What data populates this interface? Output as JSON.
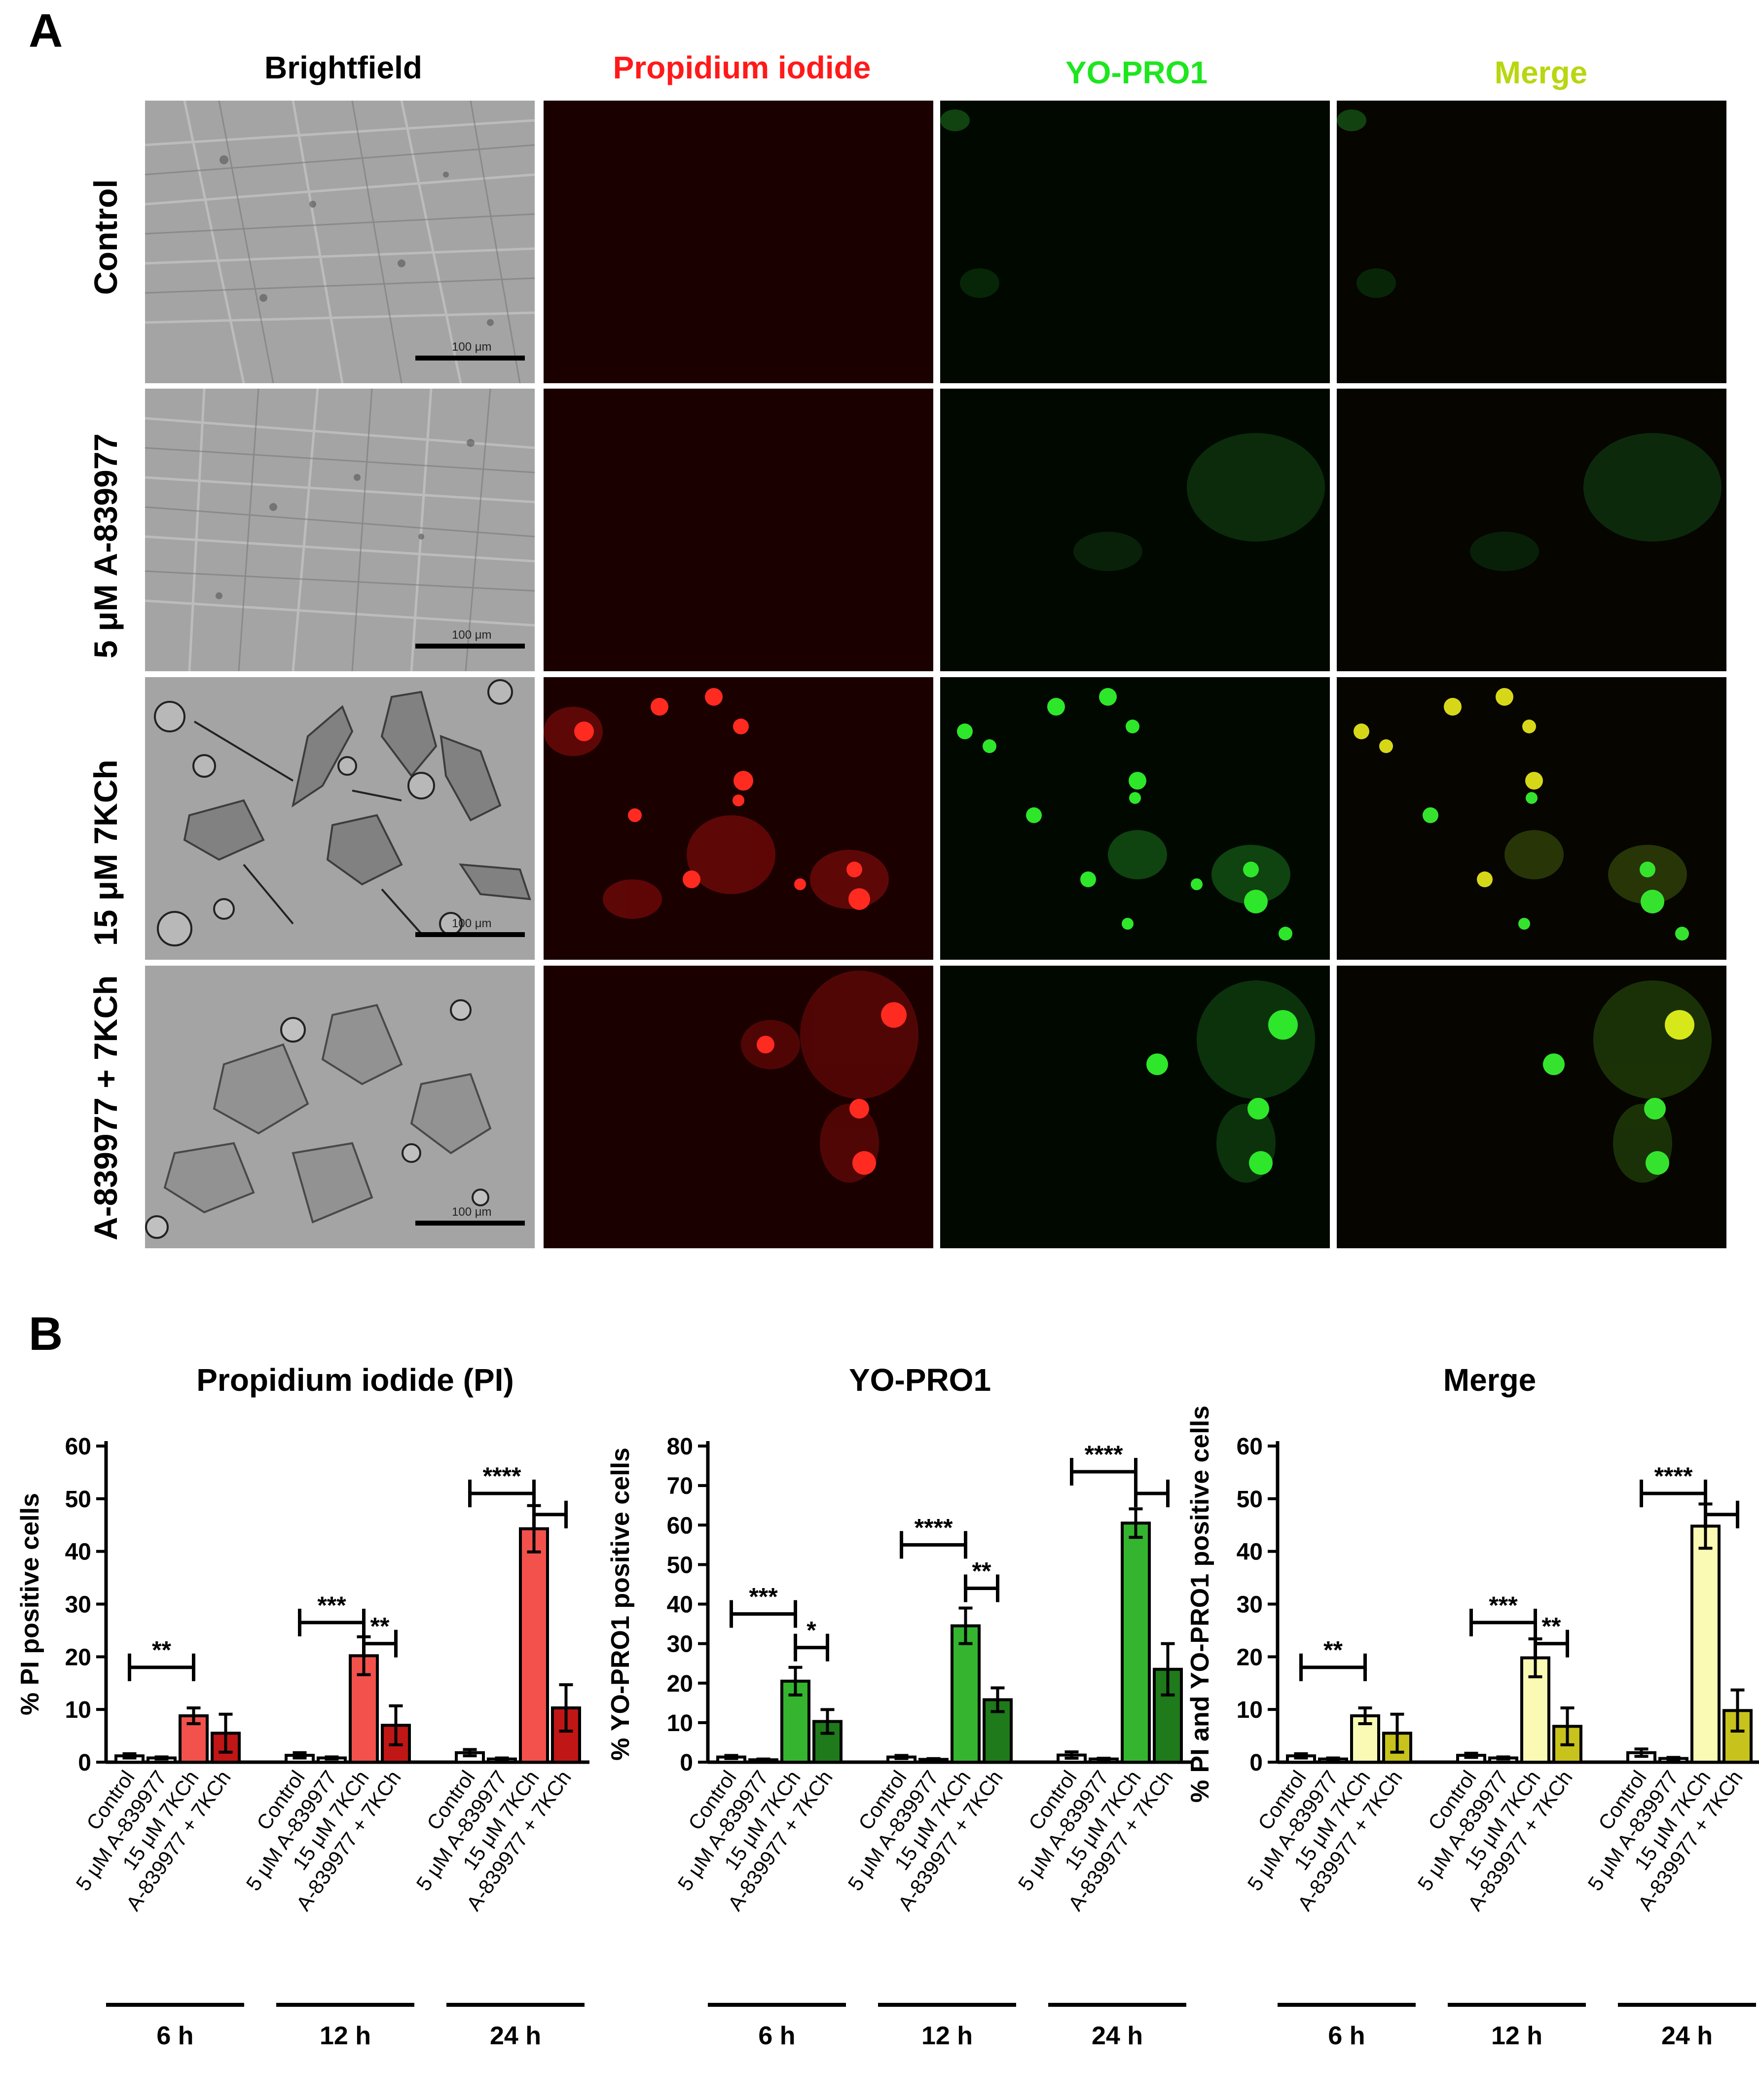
{
  "panel_a": {
    "letter": "A",
    "columns": [
      "Brightfield",
      "Propidium iodide",
      "YO-PRO1",
      "Merge"
    ],
    "column_colors": [
      "#000000",
      "#ff1a1a",
      "#1ee61e",
      "#b9d60f"
    ],
    "rows": [
      "Control",
      "5 μM A-839977",
      "15 μM 7KCh",
      "A-839977 + 7KCh"
    ],
    "scale_bar_label": "100 μm"
  },
  "panel_b": {
    "letter": "B"
  },
  "chart_data": [
    {
      "type": "bar",
      "title": "Propidium iodide (PI)",
      "ylabel": "% PI positive cells",
      "ylim": [
        0,
        60
      ],
      "yticks": [
        0,
        10,
        20,
        30,
        40,
        50,
        60
      ],
      "categories": [
        "Control",
        "5 μM A-839977",
        "15 μM 7KCh",
        "A-839977 + 7KCh"
      ],
      "groups": [
        "6 h",
        "12 h",
        "24 h"
      ],
      "colors": [
        "#ffffff",
        "#ffffff",
        "#f2514c",
        "#c01616"
      ],
      "values": [
        [
          1.2,
          0.8,
          8.8,
          5.5
        ],
        [
          1.3,
          0.8,
          20.2,
          7.0
        ],
        [
          1.8,
          0.6,
          44.3,
          10.3
        ]
      ],
      "errors": [
        [
          0.4,
          0.2,
          1.5,
          3.6
        ],
        [
          0.5,
          0.2,
          3.6,
          3.7
        ],
        [
          0.6,
          0.2,
          4.4,
          4.4
        ]
      ],
      "significance": [
        {
          "group": 0,
          "from": 0,
          "to": 2,
          "label": "**",
          "value": 18
        },
        {
          "group": 1,
          "from": 0,
          "to": 2,
          "label": "***",
          "value": 26.5
        },
        {
          "group": 1,
          "from": 2,
          "to": 3,
          "label": "**",
          "value": 22.5
        },
        {
          "group": 2,
          "from": 0,
          "to": 2,
          "label": "****",
          "value": 51
        },
        {
          "group": 2,
          "from": 2,
          "to": 3,
          "label": "",
          "value": 47
        }
      ]
    },
    {
      "type": "bar",
      "title": "YO-PRO1",
      "ylabel": "% YO-PRO1 positive cells",
      "ylim": [
        0,
        80
      ],
      "yticks": [
        0,
        10,
        20,
        30,
        40,
        50,
        60,
        70,
        80
      ],
      "categories": [
        "Control",
        "5 μM A-839977",
        "15 μM 7KCh",
        "A-839977 + 7KCh"
      ],
      "groups": [
        "6 h",
        "12 h",
        "24 h"
      ],
      "colors": [
        "#ffffff",
        "#ffffff",
        "#35b52f",
        "#1e7a1a"
      ],
      "values": [
        [
          1.3,
          0.6,
          20.5,
          10.3
        ],
        [
          1.3,
          0.7,
          34.5,
          15.8
        ],
        [
          1.8,
          0.8,
          60.5,
          23.5
        ]
      ],
      "errors": [
        [
          0.4,
          0.2,
          3.5,
          3.0
        ],
        [
          0.4,
          0.2,
          4.5,
          3.0
        ],
        [
          0.8,
          0.2,
          3.6,
          6.5
        ]
      ],
      "significance": [
        {
          "group": 0,
          "from": 0,
          "to": 2,
          "label": "***",
          "value": 37.5
        },
        {
          "group": 0,
          "from": 2,
          "to": 3,
          "label": "*",
          "value": 29
        },
        {
          "group": 1,
          "from": 0,
          "to": 2,
          "label": "****",
          "value": 55
        },
        {
          "group": 1,
          "from": 2,
          "to": 3,
          "label": "**",
          "value": 44
        },
        {
          "group": 2,
          "from": 0,
          "to": 2,
          "label": "****",
          "value": 73.5
        },
        {
          "group": 2,
          "from": 2,
          "to": 3,
          "label": "",
          "value": 68
        }
      ]
    },
    {
      "type": "bar",
      "title": "Merge",
      "ylabel": "% PI and YO-PRO1 positive cells",
      "ylim": [
        0,
        60
      ],
      "yticks": [
        0,
        10,
        20,
        30,
        40,
        50,
        60
      ],
      "categories": [
        "Control",
        "5 μM A-839977",
        "15 μM 7KCh",
        "A-839977 + 7KCh"
      ],
      "groups": [
        "6 h",
        "12 h",
        "24 h"
      ],
      "colors": [
        "#ffffff",
        "#ffffff",
        "#fafab4",
        "#c8c21c"
      ],
      "values": [
        [
          1.2,
          0.6,
          8.8,
          5.5
        ],
        [
          1.3,
          0.8,
          19.8,
          6.8
        ],
        [
          1.8,
          0.7,
          44.8,
          9.8
        ]
      ],
      "errors": [
        [
          0.4,
          0.2,
          1.5,
          3.6
        ],
        [
          0.4,
          0.2,
          3.6,
          3.5
        ],
        [
          0.7,
          0.2,
          4.2,
          3.9
        ]
      ],
      "significance": [
        {
          "group": 0,
          "from": 0,
          "to": 2,
          "label": "**",
          "value": 18
        },
        {
          "group": 1,
          "from": 0,
          "to": 2,
          "label": "***",
          "value": 26.5
        },
        {
          "group": 1,
          "from": 2,
          "to": 3,
          "label": "**",
          "value": 22.5
        },
        {
          "group": 2,
          "from": 0,
          "to": 2,
          "label": "****",
          "value": 51
        },
        {
          "group": 2,
          "from": 2,
          "to": 3,
          "label": "",
          "value": 47
        }
      ]
    }
  ]
}
